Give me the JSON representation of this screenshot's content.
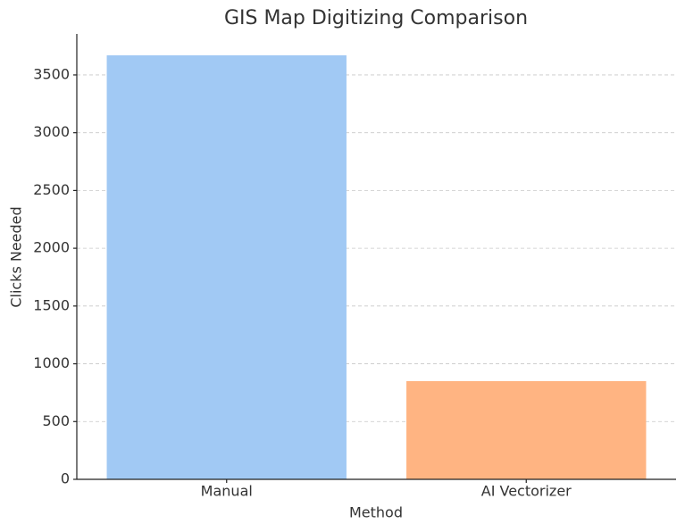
{
  "chart_data": {
    "type": "bar",
    "title": "GIS Map Digitizing Comparison",
    "x_label": "Method",
    "y_label": "Clicks Needed",
    "categories": [
      "Manual",
      "AI Vectorizer"
    ],
    "values": [
      3670,
      850
    ],
    "colors": [
      "#a1c9f4",
      "#ffb482"
    ],
    "ylim": [
      0,
      3855
    ],
    "yticks": [
      0,
      500,
      1000,
      1500,
      2000,
      2500,
      3000,
      3500
    ],
    "grid": true
  }
}
